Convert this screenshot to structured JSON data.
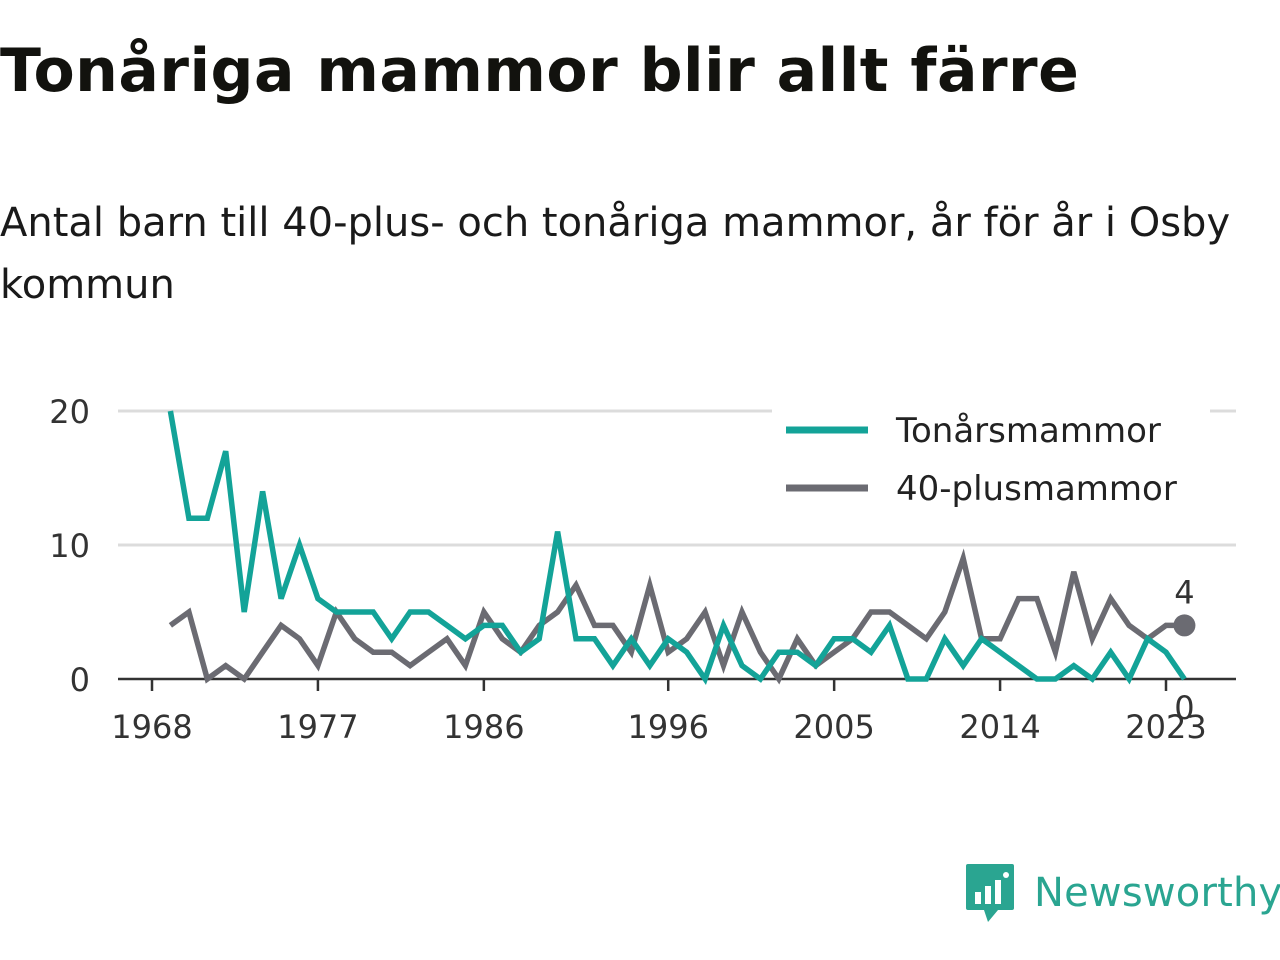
{
  "header": {
    "title": "Tonåriga mammor blir allt färre",
    "subtitle": "Antal barn till 40-plus- och tonåriga mammor, år för år i Osby kommun"
  },
  "brand": {
    "name": "Newsworthy",
    "logo_icon": "bar-chart-speech-bubble-icon",
    "color": "#2aa591"
  },
  "chart_data": {
    "type": "line",
    "x_ticks": [
      1968,
      1977,
      1986,
      1996,
      2005,
      2014,
      2023
    ],
    "x_range": [
      1968,
      2025
    ],
    "y_ticks": [
      0,
      10,
      20
    ],
    "ylim": [
      0,
      20
    ],
    "grid": true,
    "legend_position": "top-right",
    "series": [
      {
        "name": "Tonårsmammor",
        "color": "#13a398",
        "end_label": "0",
        "points": [
          [
            1969,
            20
          ],
          [
            1970,
            12
          ],
          [
            1971,
            12
          ],
          [
            1972,
            17
          ],
          [
            1973,
            5
          ],
          [
            1974,
            14
          ],
          [
            1975,
            6
          ],
          [
            1976,
            10
          ],
          [
            1977,
            6
          ],
          [
            1978,
            5
          ],
          [
            1979,
            5
          ],
          [
            1980,
            5
          ],
          [
            1981,
            3
          ],
          [
            1982,
            5
          ],
          [
            1983,
            5
          ],
          [
            1984,
            4
          ],
          [
            1985,
            3
          ],
          [
            1986,
            4
          ],
          [
            1987,
            4
          ],
          [
            1988,
            2
          ],
          [
            1989,
            3
          ],
          [
            1990,
            11
          ],
          [
            1991,
            3
          ],
          [
            1992,
            3
          ],
          [
            1993,
            1
          ],
          [
            1994,
            3
          ],
          [
            1995,
            1
          ],
          [
            1996,
            3
          ],
          [
            1997,
            2
          ],
          [
            1998,
            0
          ],
          [
            1999,
            4
          ],
          [
            2000,
            1
          ],
          [
            2001,
            0
          ],
          [
            2002,
            2
          ],
          [
            2003,
            2
          ],
          [
            2004,
            1
          ],
          [
            2005,
            3
          ],
          [
            2006,
            3
          ],
          [
            2007,
            2
          ],
          [
            2008,
            4
          ],
          [
            2009,
            0
          ],
          [
            2010,
            0
          ],
          [
            2011,
            3
          ],
          [
            2012,
            1
          ],
          [
            2013,
            3
          ],
          [
            2014,
            2
          ],
          [
            2015,
            1
          ],
          [
            2016,
            0
          ],
          [
            2017,
            0
          ],
          [
            2018,
            1
          ],
          [
            2019,
            0
          ],
          [
            2020,
            2
          ],
          [
            2021,
            0
          ],
          [
            2022,
            3
          ],
          [
            2023,
            2
          ],
          [
            2024,
            0
          ]
        ]
      },
      {
        "name": "40-plusmammor",
        "color": "#6b6b72",
        "end_label": "4",
        "points": [
          [
            1969,
            4
          ],
          [
            1970,
            5
          ],
          [
            1971,
            0
          ],
          [
            1972,
            1
          ],
          [
            1973,
            0
          ],
          [
            1974,
            2
          ],
          [
            1975,
            4
          ],
          [
            1976,
            3
          ],
          [
            1977,
            1
          ],
          [
            1978,
            5
          ],
          [
            1979,
            3
          ],
          [
            1980,
            2
          ],
          [
            1981,
            2
          ],
          [
            1982,
            1
          ],
          [
            1983,
            2
          ],
          [
            1984,
            3
          ],
          [
            1985,
            1
          ],
          [
            1986,
            5
          ],
          [
            1987,
            3
          ],
          [
            1988,
            2
          ],
          [
            1989,
            4
          ],
          [
            1990,
            5
          ],
          [
            1991,
            7
          ],
          [
            1992,
            4
          ],
          [
            1993,
            4
          ],
          [
            1994,
            2
          ],
          [
            1995,
            7
          ],
          [
            1996,
            2
          ],
          [
            1997,
            3
          ],
          [
            1998,
            5
          ],
          [
            1999,
            1
          ],
          [
            2000,
            5
          ],
          [
            2001,
            2
          ],
          [
            2002,
            0
          ],
          [
            2003,
            3
          ],
          [
            2004,
            1
          ],
          [
            2005,
            2
          ],
          [
            2006,
            3
          ],
          [
            2007,
            5
          ],
          [
            2008,
            5
          ],
          [
            2009,
            4
          ],
          [
            2010,
            3
          ],
          [
            2011,
            5
          ],
          [
            2012,
            9
          ],
          [
            2013,
            3
          ],
          [
            2014,
            3
          ],
          [
            2015,
            6
          ],
          [
            2016,
            6
          ],
          [
            2017,
            2
          ],
          [
            2018,
            8
          ],
          [
            2019,
            3
          ],
          [
            2020,
            6
          ],
          [
            2021,
            4
          ],
          [
            2022,
            3
          ],
          [
            2023,
            4
          ],
          [
            2024,
            4
          ]
        ]
      }
    ]
  }
}
